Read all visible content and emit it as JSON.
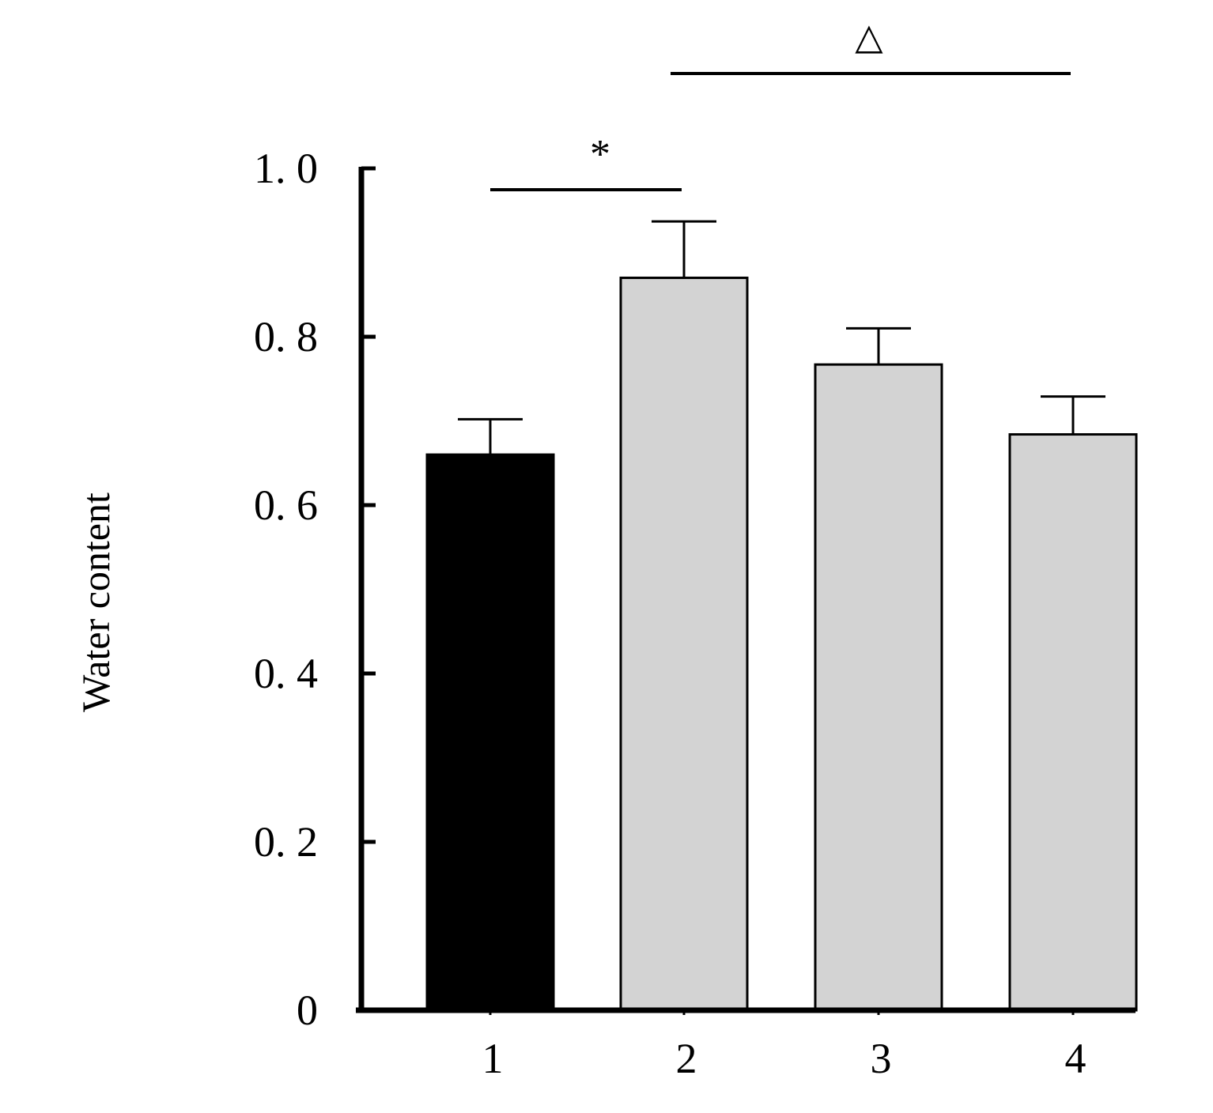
{
  "chart_data": {
    "type": "bar",
    "categories": [
      "1",
      "2",
      "3",
      "4"
    ],
    "values": [
      0.66,
      0.87,
      0.767,
      0.684
    ],
    "errors": [
      0.042,
      0.067,
      0.043,
      0.045
    ],
    "bar_fill": [
      "#000000",
      "#d3d3d3",
      "#d3d3d3",
      "#d3d3d3"
    ],
    "ylabel": "Water content",
    "xlabel": "",
    "title": "",
    "ylim": [
      0,
      1.0
    ],
    "y_ticks": [
      {
        "value": 0,
        "label": "0"
      },
      {
        "value": 0.2,
        "label": "0. 2"
      },
      {
        "value": 0.4,
        "label": "0. 4"
      },
      {
        "value": 0.6,
        "label": "0. 6"
      },
      {
        "value": 0.8,
        "label": "0. 8"
      },
      {
        "value": 1.0,
        "label": "1. 0"
      }
    ],
    "significance": [
      {
        "from": "1",
        "to": "2",
        "symbol": "*"
      },
      {
        "from": "2",
        "to": "4",
        "symbol": "△"
      }
    ],
    "grid": false,
    "legend": "none"
  }
}
